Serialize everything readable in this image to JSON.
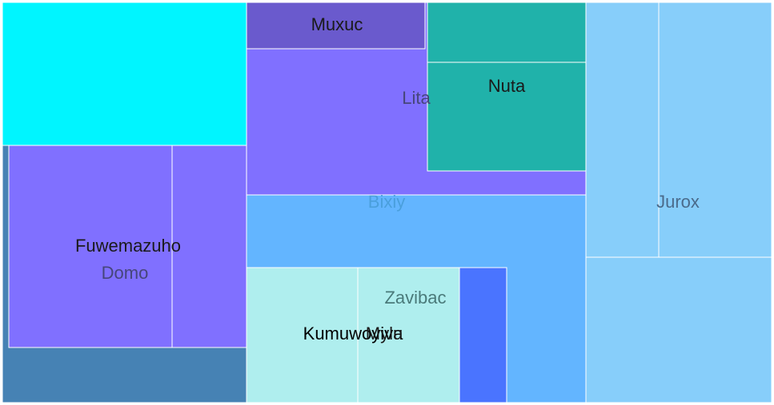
{
  "chart_data": {
    "type": "treemap",
    "title": "",
    "groups": [
      {
        "name": "Domo",
        "color": "#4682b4",
        "label_color": "#46467a",
        "children": [
          {
            "name": "",
            "color": "#00f5ff",
            "label_color": "#000000"
          },
          {
            "name": "Fuwemazuho",
            "color": "#8070ff",
            "label_color": "#1a1a1a"
          },
          {
            "name": "",
            "color": "#8070ff",
            "label_color": "#000000"
          }
        ]
      },
      {
        "name": "Lita",
        "color": "#8070ff",
        "label_color": "#46467a",
        "children": [
          {
            "name": "Muxuc",
            "color": "#6a5acd",
            "label_color": "#1a1a1a"
          },
          {
            "name": "",
            "color": "#20b2aa",
            "label_color": "#000000"
          },
          {
            "name": "Nuta",
            "color": "#20b2aa",
            "label_color": "#1a1a1a"
          }
        ]
      },
      {
        "name": "Bixiy",
        "color": "#63b5ff",
        "label_color": "#4a9fdc",
        "children": []
      },
      {
        "name": "Zavibac",
        "color": "#4a74ff",
        "label_color": "#4a7a7a",
        "children": [
          {
            "name": "Kumuwoyiva",
            "color": "#afeeee",
            "label_color": "#000000"
          },
          {
            "name": "Mylu",
            "color": "#afeeee",
            "label_color": "#1a1a1a"
          }
        ]
      },
      {
        "name": "Jurox",
        "color": "#87cefa",
        "label_color": "#4a6a8a",
        "children": [
          {
            "name": "",
            "color": "#87cefa",
            "label_color": "#000000"
          },
          {
            "name": "",
            "color": "#87cefa",
            "label_color": "#000000"
          }
        ]
      }
    ]
  }
}
